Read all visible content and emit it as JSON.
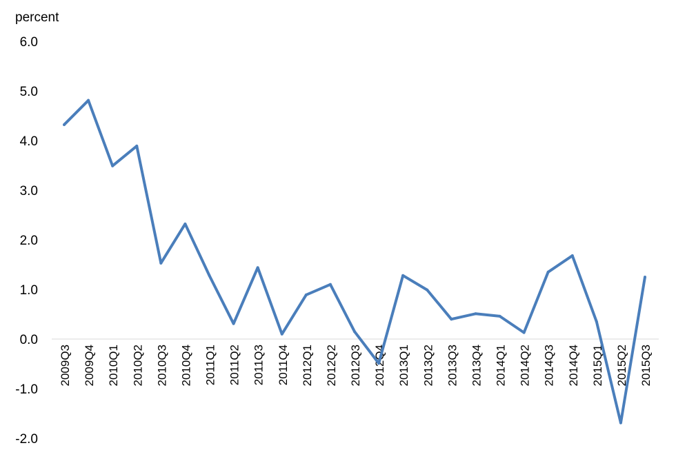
{
  "chart_data": {
    "type": "line",
    "ylabel": "percent",
    "ylim": [
      -2.0,
      6.0
    ],
    "yticks": [
      "6.0",
      "5.0",
      "4.0",
      "3.0",
      "2.0",
      "1.0",
      "0.0",
      "-1.0",
      "-2.0"
    ],
    "grid": false,
    "line_color": "#4a7ebb",
    "categories": [
      "2009Q3",
      "2009Q4",
      "2010Q1",
      "2010Q2",
      "2010Q3",
      "2010Q4",
      "2011Q1",
      "2011Q2",
      "2011Q3",
      "2011Q4",
      "2012Q1",
      "2012Q2",
      "2012Q3",
      "2012Q4",
      "2013Q1",
      "2013Q2",
      "2013Q3",
      "2013Q4",
      "2014Q1",
      "2014Q2",
      "2014Q3",
      "2014Q4",
      "2015Q1",
      "2015Q2",
      "2015Q3"
    ],
    "values": [
      4.32,
      4.81,
      3.49,
      3.89,
      1.53,
      2.32,
      1.28,
      0.31,
      1.44,
      0.1,
      0.89,
      1.1,
      0.15,
      -0.49,
      1.28,
      0.99,
      0.4,
      0.51,
      0.46,
      0.13,
      1.35,
      1.68,
      0.35,
      -1.69,
      1.25
    ]
  }
}
